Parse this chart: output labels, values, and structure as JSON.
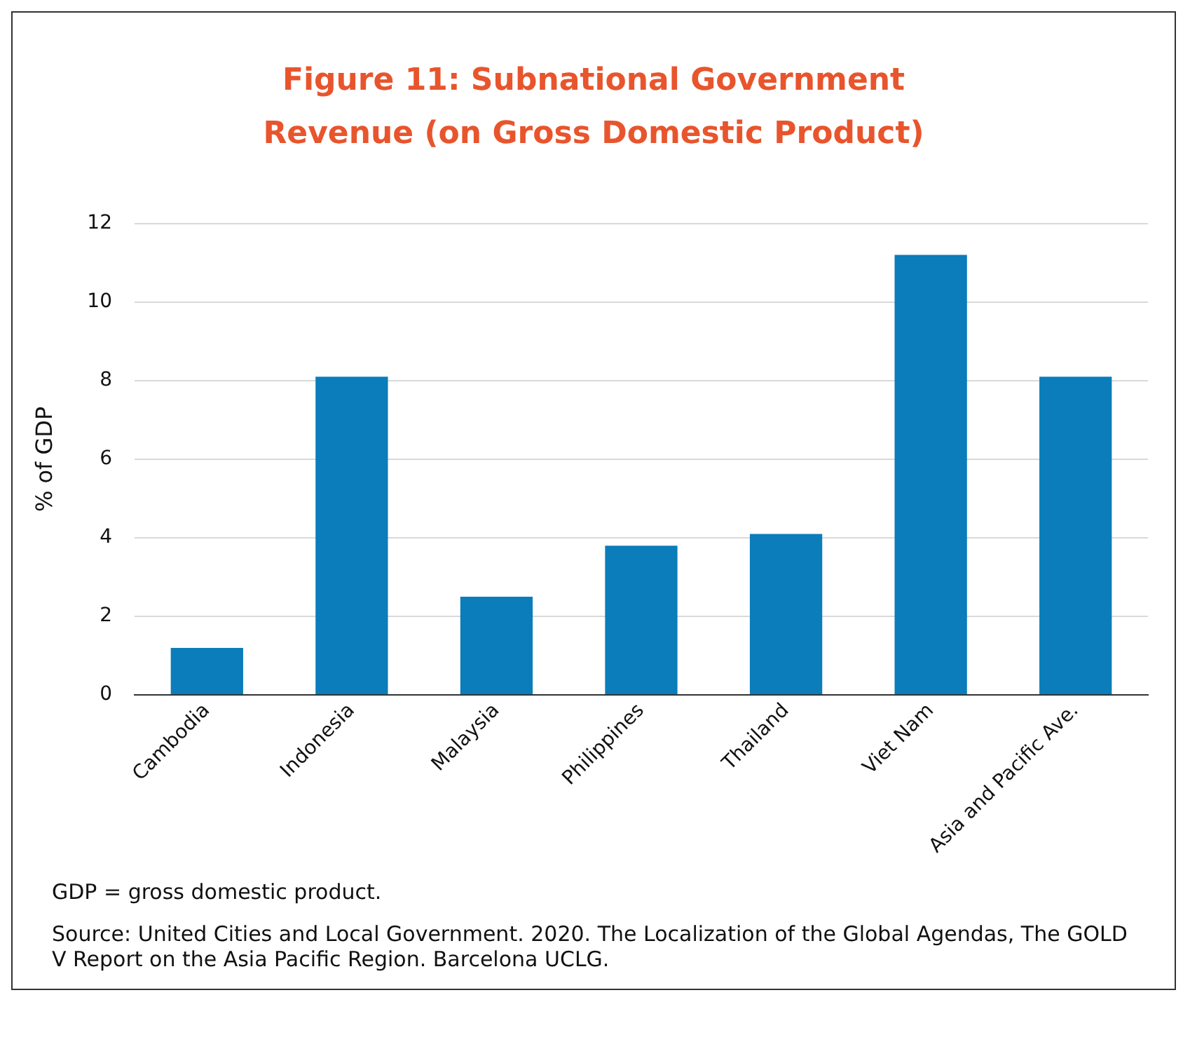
{
  "chart_data": {
    "type": "bar",
    "title": "Figure 11: Subnational Government Revenue (on Gross Domestic Product)",
    "ylabel": "% of GDP",
    "categories": [
      "Cambodia",
      "Indonesia",
      "Malaysia",
      "Philippines",
      "Thailand",
      "Viet Nam",
      "Asia and Pacific Ave."
    ],
    "values": [
      1.2,
      8.1,
      2.5,
      3.8,
      4.1,
      11.2,
      8.1
    ],
    "color": "#0a7dba",
    "ylim": [
      0,
      12
    ],
    "yticks": [
      0,
      2,
      4,
      6,
      8,
      10,
      12
    ],
    "grid": "y",
    "annotations": [
      "GDP = gross domestic product.",
      "Source: United Cities and Local Government. 2020. The Localization of the Global Agendas, The GOLD V Report on the Asia Pacific Region. Barcelona UCLG."
    ]
  }
}
